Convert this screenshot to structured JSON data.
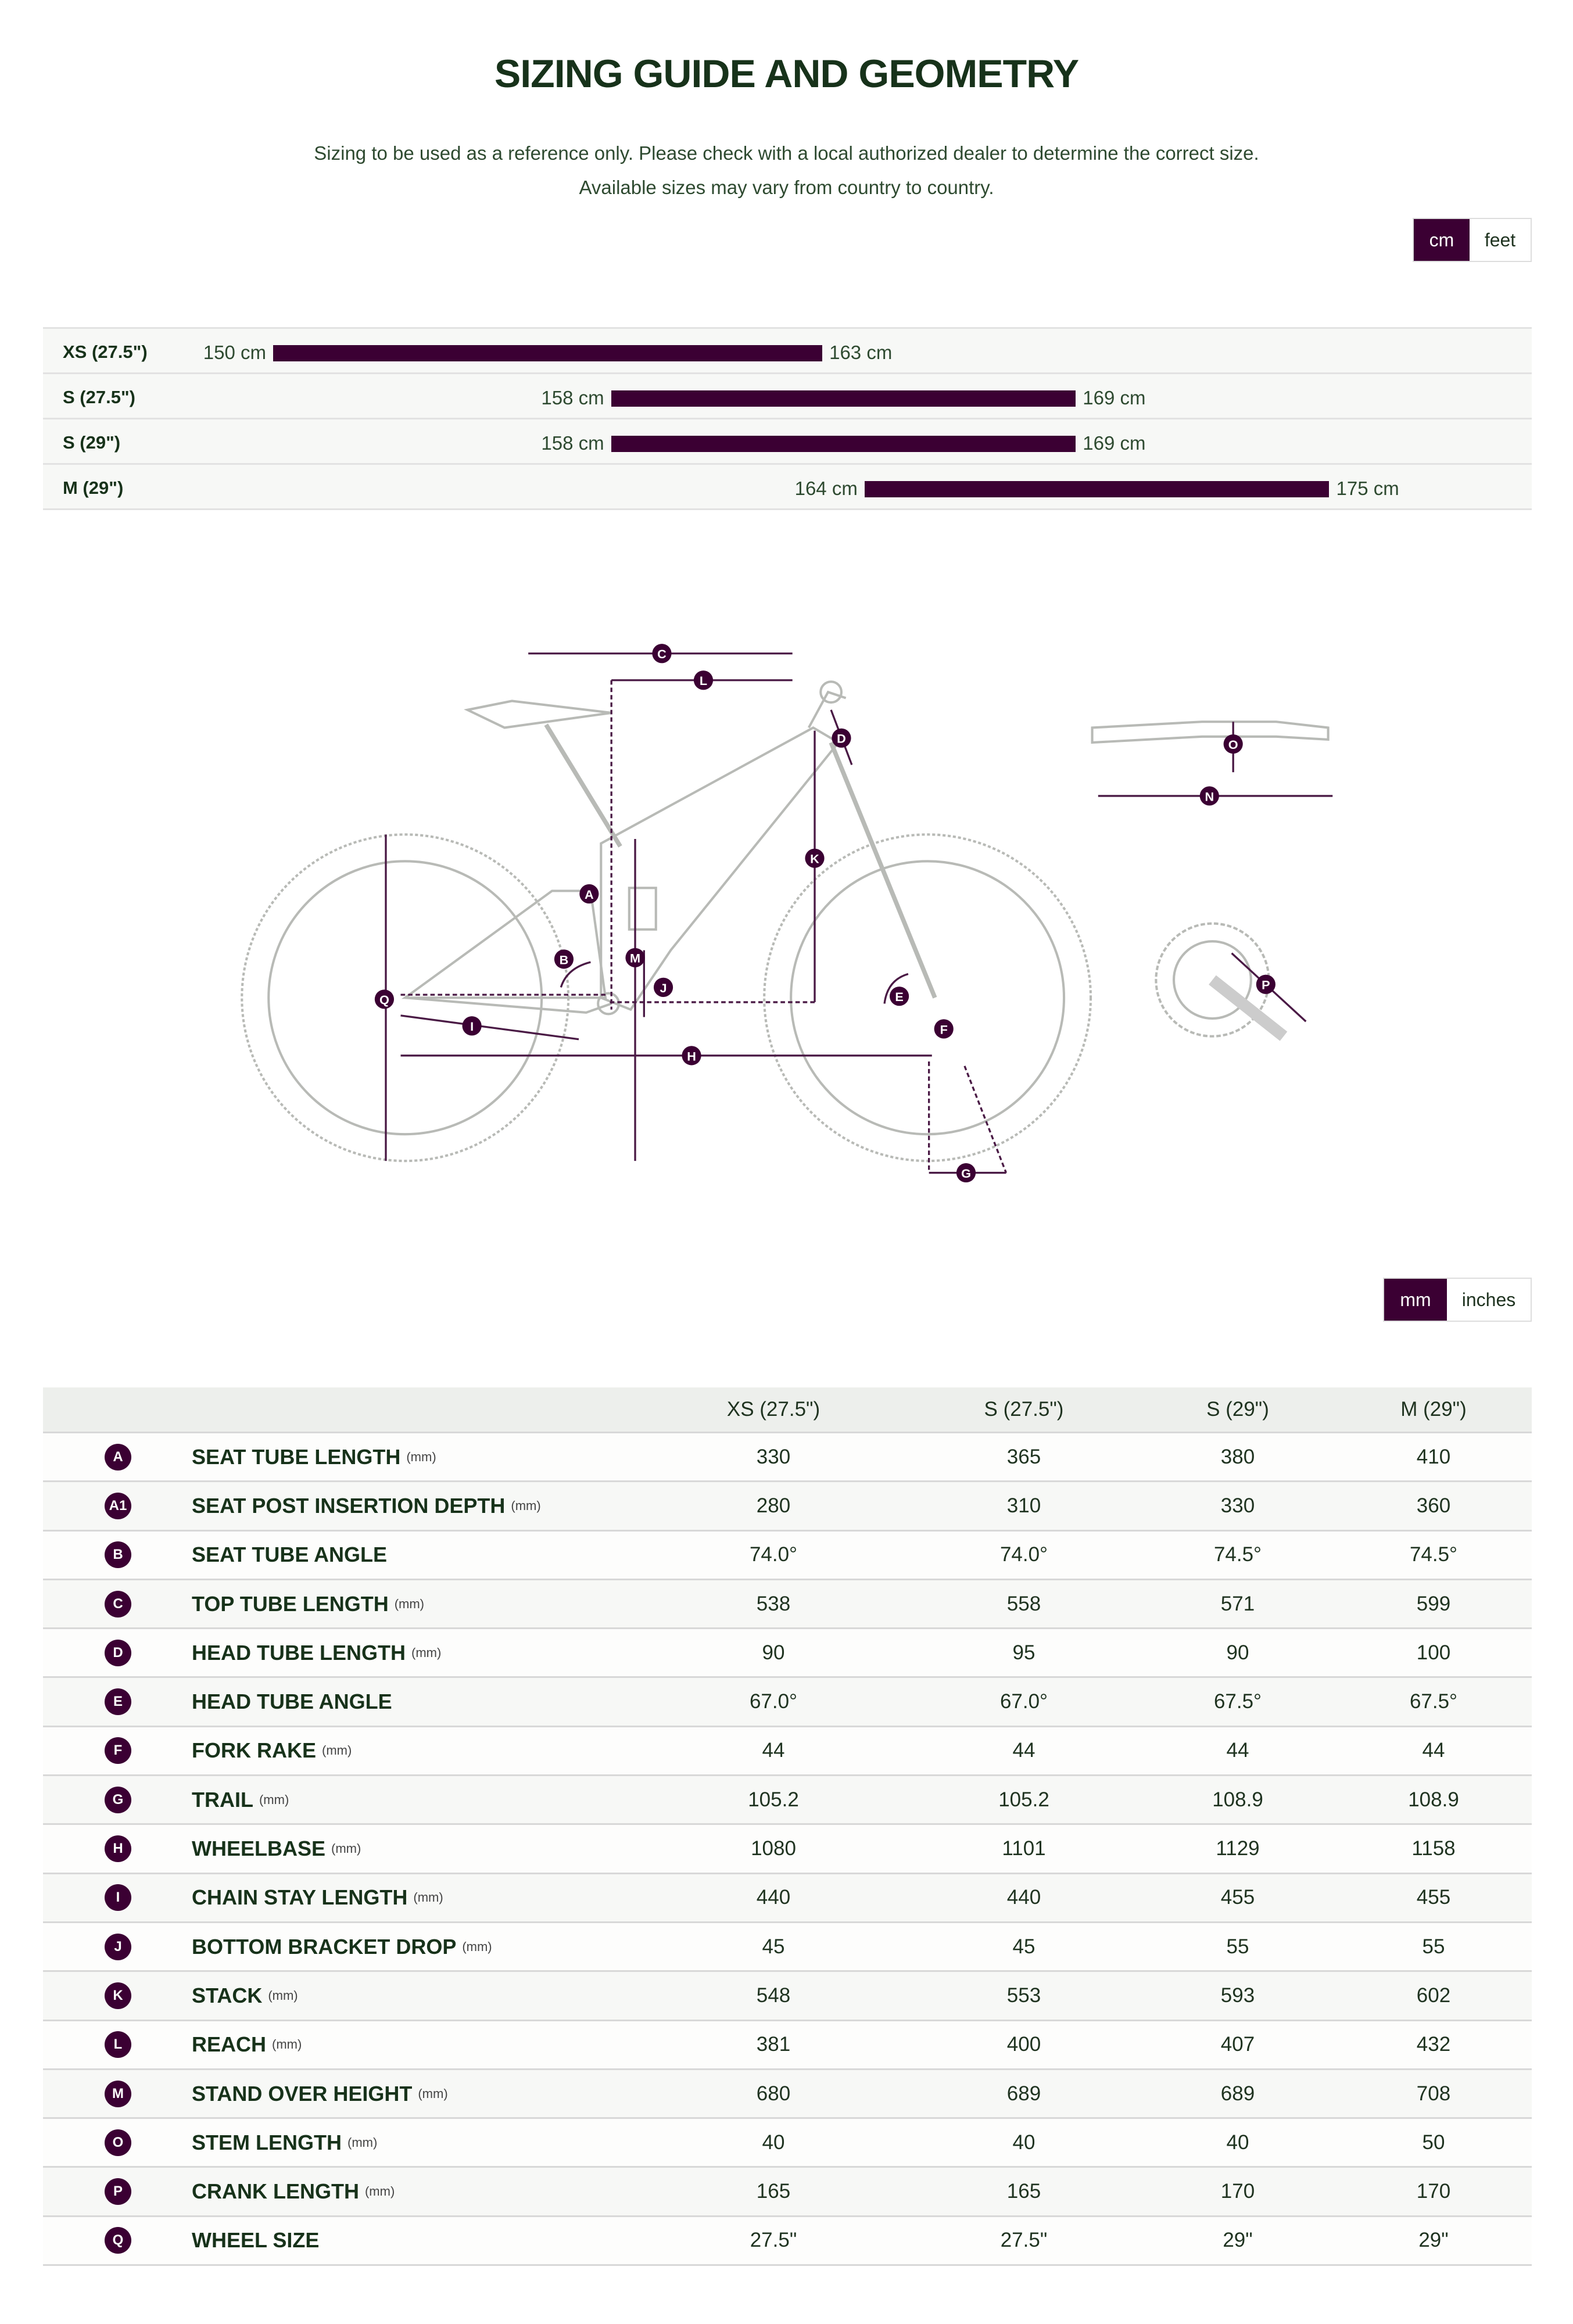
{
  "header": {
    "title": "SIZING GUIDE AND GEOMETRY",
    "subtitle_line1": "Sizing to be used as a reference only. Please check with a local authorized dealer to determine the correct size.",
    "subtitle_line2": "Available sizes may vary from country to country."
  },
  "height_units": {
    "active": "cm",
    "inactive": "feet"
  },
  "size_ranges": [
    {
      "size": "XS (27.5\")",
      "min": 150,
      "max": 163,
      "min_label": "150 cm",
      "max_label": "163 cm"
    },
    {
      "size": "S (27.5\")",
      "min": 158,
      "max": 169,
      "min_label": "158 cm",
      "max_label": "169 cm"
    },
    {
      "size": "S (29\")",
      "min": 158,
      "max": 169,
      "min_label": "158 cm",
      "max_label": "169 cm"
    },
    {
      "size": "M (29\")",
      "min": 164,
      "max": 175,
      "min_label": "164 cm",
      "max_label": "175 cm"
    }
  ],
  "diagram_letters": [
    "A",
    "B",
    "C",
    "D",
    "E",
    "F",
    "G",
    "H",
    "I",
    "J",
    "K",
    "L",
    "M",
    "N",
    "O",
    "P",
    "Q"
  ],
  "geometry_units": {
    "active": "mm",
    "inactive": "inches"
  },
  "geometry": {
    "columns": [
      "XS (27.5\")",
      "S (27.5\")",
      "S (29\")",
      "M (29\")"
    ],
    "rows": [
      {
        "letter": "A",
        "label": "SEAT TUBE LENGTH",
        "unit": "(mm)",
        "values": [
          "330",
          "365",
          "380",
          "410"
        ]
      },
      {
        "letter": "A1",
        "label": "SEAT POST INSERTION DEPTH",
        "unit": "(mm)",
        "values": [
          "280",
          "310",
          "330",
          "360"
        ]
      },
      {
        "letter": "B",
        "label": "SEAT TUBE ANGLE",
        "unit": "",
        "values": [
          "74.0°",
          "74.0°",
          "74.5°",
          "74.5°"
        ]
      },
      {
        "letter": "C",
        "label": "TOP TUBE LENGTH",
        "unit": "(mm)",
        "values": [
          "538",
          "558",
          "571",
          "599"
        ]
      },
      {
        "letter": "D",
        "label": "HEAD TUBE LENGTH",
        "unit": "(mm)",
        "values": [
          "90",
          "95",
          "90",
          "100"
        ]
      },
      {
        "letter": "E",
        "label": "HEAD TUBE ANGLE",
        "unit": "",
        "values": [
          "67.0°",
          "67.0°",
          "67.5°",
          "67.5°"
        ]
      },
      {
        "letter": "F",
        "label": "FORK RAKE",
        "unit": "(mm)",
        "values": [
          "44",
          "44",
          "44",
          "44"
        ]
      },
      {
        "letter": "G",
        "label": "TRAIL",
        "unit": "(mm)",
        "values": [
          "105.2",
          "105.2",
          "108.9",
          "108.9"
        ]
      },
      {
        "letter": "H",
        "label": "WHEELBASE",
        "unit": "(mm)",
        "values": [
          "1080",
          "1101",
          "1129",
          "1158"
        ]
      },
      {
        "letter": "I",
        "label": "CHAIN STAY LENGTH",
        "unit": "(mm)",
        "values": [
          "440",
          "440",
          "455",
          "455"
        ]
      },
      {
        "letter": "J",
        "label": "BOTTOM BRACKET DROP",
        "unit": "(mm)",
        "values": [
          "45",
          "45",
          "55",
          "55"
        ]
      },
      {
        "letter": "K",
        "label": "STACK",
        "unit": "(mm)",
        "values": [
          "548",
          "553",
          "593",
          "602"
        ]
      },
      {
        "letter": "L",
        "label": "REACH",
        "unit": "(mm)",
        "values": [
          "381",
          "400",
          "407",
          "432"
        ]
      },
      {
        "letter": "M",
        "label": "STAND OVER HEIGHT",
        "unit": "(mm)",
        "values": [
          "680",
          "689",
          "689",
          "708"
        ]
      },
      {
        "letter": "O",
        "label": "STEM LENGTH",
        "unit": "(mm)",
        "values": [
          "40",
          "40",
          "40",
          "50"
        ]
      },
      {
        "letter": "P",
        "label": "CRANK LENGTH",
        "unit": "(mm)",
        "values": [
          "165",
          "165",
          "170",
          "170"
        ]
      },
      {
        "letter": "Q",
        "label": "WHEEL SIZE",
        "unit": "",
        "values": [
          "27.5\"",
          "27.5\"",
          "29\"",
          "29\""
        ]
      }
    ]
  },
  "colors": {
    "accent": "#3b0033",
    "text": "#1f3320",
    "frame": "#b8bab6"
  }
}
